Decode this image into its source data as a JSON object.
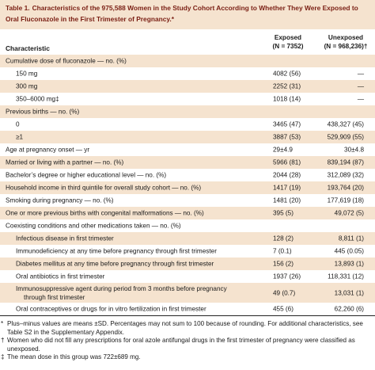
{
  "title": {
    "label": "Table 1.",
    "text": "Characteristics of the 975,588 Women in the Study Cohort According to Whether They Were Exposed to Oral Fluconazole in the First Trimester of Pregnancy.*"
  },
  "header": {
    "characteristic": "Characteristic",
    "exposed_line1": "Exposed",
    "exposed_line2": "(N = 7352)",
    "unexposed_line1": "Unexposed",
    "unexposed_line2": "(N = 968,236)†"
  },
  "rows": [
    {
      "label": "Cumulative dose of fluconazole — no. (%)",
      "indent": 0,
      "exposed": "",
      "unexposed": ""
    },
    {
      "label": "150 mg",
      "indent": 1,
      "exposed": "4082 (56)",
      "unexposed": "—"
    },
    {
      "label": "300 mg",
      "indent": 1,
      "exposed": "2252 (31)",
      "unexposed": "—"
    },
    {
      "label": "350–6000 mg‡",
      "indent": 1,
      "exposed": "1018 (14)",
      "unexposed": "—"
    },
    {
      "label": "Previous births — no. (%)",
      "indent": 0,
      "exposed": "",
      "unexposed": ""
    },
    {
      "label": "0",
      "indent": 1,
      "exposed": "3465 (47)",
      "unexposed": "438,327 (45)"
    },
    {
      "label": "≥1",
      "indent": 1,
      "exposed": "3887 (53)",
      "unexposed": "529,909 (55)"
    },
    {
      "label": "Age at pregnancy onset — yr",
      "indent": 0,
      "exposed": "29±4.9",
      "unexposed": "30±4.8"
    },
    {
      "label": "Married or living with a partner — no. (%)",
      "indent": 0,
      "exposed": "5966 (81)",
      "unexposed": "839,194 (87)"
    },
    {
      "label": "Bachelor’s degree or higher educational level — no. (%)",
      "indent": 0,
      "exposed": "2044 (28)",
      "unexposed": "312,089 (32)"
    },
    {
      "label": "Household income in third quintile for overall study cohort — no. (%)",
      "indent": 0,
      "exposed": "1417 (19)",
      "unexposed": "193,764 (20)"
    },
    {
      "label": "Smoking during pregnancy — no. (%)",
      "indent": 0,
      "exposed": "1481 (20)",
      "unexposed": "177,619 (18)"
    },
    {
      "label": "One or more previous births with congenital malformations — no. (%)",
      "indent": 0,
      "exposed": "395 (5)",
      "unexposed": "49,072 (5)"
    },
    {
      "label": "Coexisting conditions and other medications taken — no. (%)",
      "indent": 0,
      "exposed": "",
      "unexposed": ""
    },
    {
      "label": "Infectious disease in first trimester",
      "indent": 1,
      "exposed": "128 (2)",
      "unexposed": "8,811 (1)"
    },
    {
      "label": "Immunodeficiency at any time before pregnancy through first trimester",
      "indent": 1,
      "exposed": "7 (0.1)",
      "unexposed": "445 (0.05)"
    },
    {
      "label": "Diabetes mellitus at any time before pregnancy through first trimester",
      "indent": 1,
      "exposed": "156 (2)",
      "unexposed": "13,893 (1)"
    },
    {
      "label": "Oral antibiotics in first trimester",
      "indent": 1,
      "exposed": "1937 (26)",
      "unexposed": "118,331 (12)"
    },
    {
      "label": "Immunosuppressive agent during period from 3 months before pregnancy",
      "label2": "through first trimester",
      "indent": 1,
      "exposed": "49 (0.7)",
      "unexposed": "13,031 (1)"
    },
    {
      "label": "Oral contraceptives or drugs for in vitro fertilization in first trimester",
      "indent": 1,
      "exposed": "455 (6)",
      "unexposed": "62,260 (6)"
    }
  ],
  "footnotes": [
    {
      "mark": "*",
      "text": "Plus–minus values are means ±SD. Percentages may not sum to 100 because of rounding. For additional characteristics, see Table S2 in the Supplementary Appendix."
    },
    {
      "mark": "†",
      "text": "Women who did not fill any prescriptions for oral azole antifungal drugs in the first trimester of pregnancy were classified as unexposed."
    },
    {
      "mark": "‡",
      "text": "The mean dose in this group was 722±689 mg."
    }
  ]
}
